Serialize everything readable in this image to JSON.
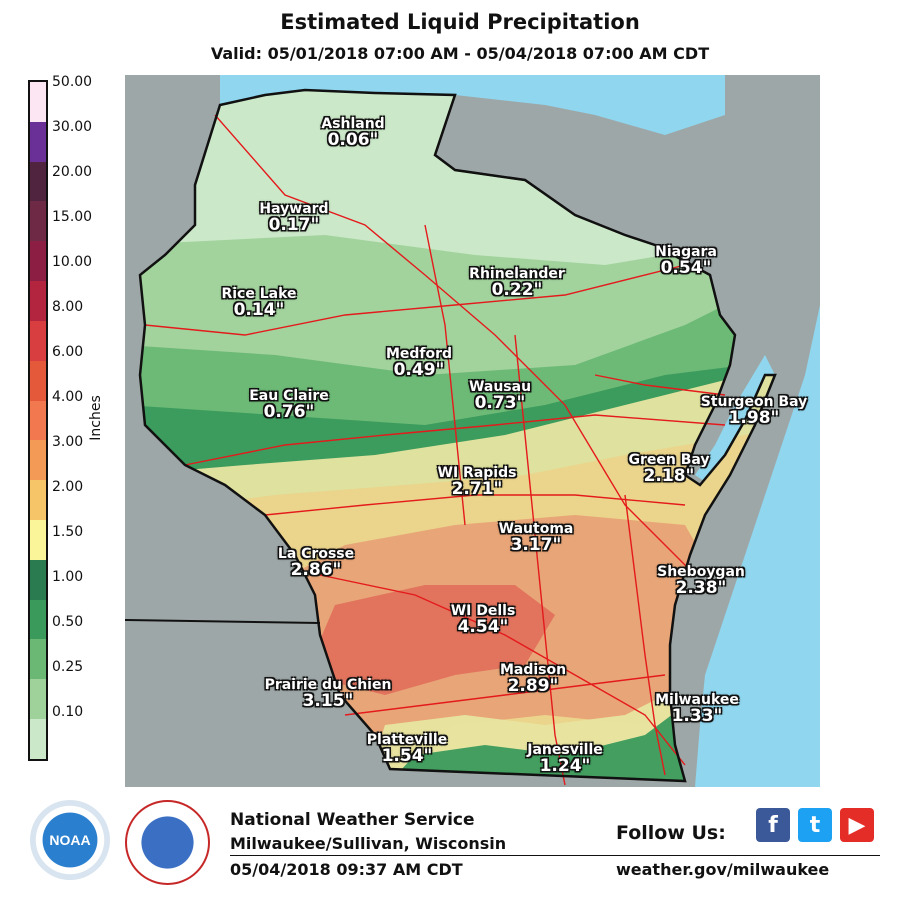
{
  "title": "Estimated Liquid Precipitation",
  "subtitle": "Valid: 05/01/2018 07:00 AM - 05/04/2018 07:00 AM CDT",
  "legend": {
    "units_label": "Inches",
    "ticks": [
      "50.00",
      "30.00",
      "20.00",
      "15.00",
      "10.00",
      "8.00",
      "6.00",
      "4.00",
      "3.00",
      "2.00",
      "1.50",
      "1.00",
      "0.50",
      "0.25",
      "0.10"
    ],
    "colors": [
      "#fde6f4",
      "#6a3097",
      "#50243f",
      "#6e2a45",
      "#8b1e42",
      "#b3243e",
      "#d83e40",
      "#e5593b",
      "#f1784f",
      "#f49a57",
      "#f6c568",
      "#fbf59a",
      "#2a7b4f",
      "#3a9a5c",
      "#6ab874",
      "#9fd29b",
      "#cbe8c8"
    ]
  },
  "map": {
    "colors": {
      "water": "#8fd6ee",
      "outside": "#9ea7a7",
      "light_green": "#cbe8c8",
      "green": "#9fd29b",
      "mid_green": "#6ab874",
      "dark_green": "#3a9a5c",
      "yellow": "#e8e5a1",
      "tan": "#ebd38a",
      "orange": "#e8a276",
      "red": "#e2705c",
      "road": "#e41a1c",
      "border": "#111111"
    },
    "cities": [
      {
        "name": "Ashland",
        "value": "0.06\""
      },
      {
        "name": "Hayward",
        "value": "0.17\""
      },
      {
        "name": "Rice Lake",
        "value": "0.14\""
      },
      {
        "name": "Rhinelander",
        "value": "0.22\""
      },
      {
        "name": "Niagara",
        "value": "0.54\""
      },
      {
        "name": "Medford",
        "value": "0.49\""
      },
      {
        "name": "Eau Claire",
        "value": "0.76\""
      },
      {
        "name": "Wausau",
        "value": "0.73\""
      },
      {
        "name": "Sturgeon Bay",
        "value": "1.98\""
      },
      {
        "name": "Green Bay",
        "value": "2.18\""
      },
      {
        "name": "WI Rapids",
        "value": "2.71\""
      },
      {
        "name": "Wautoma",
        "value": "3.17\""
      },
      {
        "name": "La Crosse",
        "value": "2.86\""
      },
      {
        "name": "Sheboygan",
        "value": "2.38\""
      },
      {
        "name": "WI Dells",
        "value": "4.54\""
      },
      {
        "name": "Madison",
        "value": "2.89\""
      },
      {
        "name": "Prairie du Chien",
        "value": "3.15\""
      },
      {
        "name": "Milwaukee",
        "value": "1.33\""
      },
      {
        "name": "Platteville",
        "value": "1.54\""
      },
      {
        "name": "Janesville",
        "value": "1.24\""
      }
    ]
  },
  "footer": {
    "org": "National Weather Service",
    "office": "Milwaukee/Sullivan, Wisconsin",
    "timestamp": "05/04/2018 09:37 AM CDT",
    "follow": "Follow Us:",
    "url": "weather.gov/milwaukee",
    "social": [
      {
        "icon": "facebook-icon",
        "glyph": "f",
        "color": "#3b5998"
      },
      {
        "icon": "twitter-icon",
        "glyph": "t",
        "color": "#1da1f2"
      },
      {
        "icon": "youtube-icon",
        "glyph": "▶",
        "color": "#e52d27"
      }
    ],
    "logos": [
      {
        "icon": "noaa-logo-icon"
      },
      {
        "icon": "nws-logo-icon"
      }
    ]
  }
}
